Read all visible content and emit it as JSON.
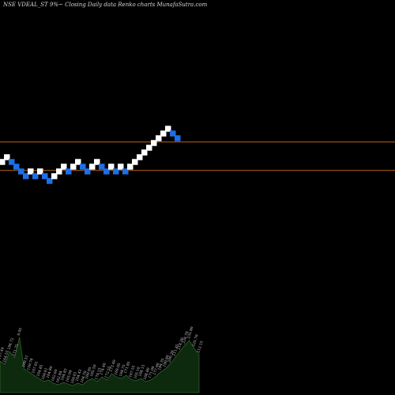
{
  "header": {
    "title": "NSE VDEAL_ST 9%~   Closing Daily data  Renko  charts MunafaSutra.com"
  },
  "colors": {
    "background": "#000000",
    "up_brick": "#ffffff",
    "down_brick": "#1e6fe6",
    "level_line": "#b5651d",
    "volume_fill": "#0e2a0e",
    "volume_stroke": "#3a7a3a",
    "volume_label": "#cfcfcf"
  },
  "chart_data": [
    {
      "type": "renko",
      "title": "NSE VDEAL_ST 9%~   Closing Daily data  Renko  charts MunafaSutra.com",
      "bricks": [
        {
          "dir": "up",
          "level": 0
        },
        {
          "dir": "up",
          "level": 1
        },
        {
          "dir": "down",
          "level": 0
        },
        {
          "dir": "down",
          "level": -1
        },
        {
          "dir": "down",
          "level": -2
        },
        {
          "dir": "down",
          "level": -3
        },
        {
          "dir": "up",
          "level": -2
        },
        {
          "dir": "down",
          "level": -3
        },
        {
          "dir": "up",
          "level": -2
        },
        {
          "dir": "down",
          "level": -3
        },
        {
          "dir": "down",
          "level": -4
        },
        {
          "dir": "up",
          "level": -3
        },
        {
          "dir": "up",
          "level": -2
        },
        {
          "dir": "up",
          "level": -1
        },
        {
          "dir": "down",
          "level": -2
        },
        {
          "dir": "up",
          "level": -1
        },
        {
          "dir": "up",
          "level": 0
        },
        {
          "dir": "down",
          "level": -1
        },
        {
          "dir": "down",
          "level": -2
        },
        {
          "dir": "up",
          "level": -1
        },
        {
          "dir": "up",
          "level": 0
        },
        {
          "dir": "down",
          "level": -1
        },
        {
          "dir": "down",
          "level": -2
        },
        {
          "dir": "up",
          "level": -1
        },
        {
          "dir": "down",
          "level": -2
        },
        {
          "dir": "up",
          "level": -1
        },
        {
          "dir": "down",
          "level": -2
        },
        {
          "dir": "up",
          "level": -1
        },
        {
          "dir": "up",
          "level": 0
        },
        {
          "dir": "up",
          "level": 1
        },
        {
          "dir": "up",
          "level": 2
        },
        {
          "dir": "up",
          "level": 3
        },
        {
          "dir": "up",
          "level": 4
        },
        {
          "dir": "up",
          "level": 5
        },
        {
          "dir": "up",
          "level": 6
        },
        {
          "dir": "up",
          "level": 7
        },
        {
          "dir": "down",
          "level": 6
        },
        {
          "dir": "down",
          "level": 5
        }
      ],
      "reference_levels": [
        4.2,
        -1.8
      ],
      "volume": [
        {
          "value": 40,
          "label": "157.44"
        },
        {
          "value": 36,
          "label": "164.55"
        },
        {
          "value": 52,
          "label": "186.72"
        },
        {
          "value": 44,
          "label": "171.75"
        },
        {
          "value": 70,
          "label": "0.95"
        },
        {
          "value": 30,
          "label": "169.51"
        },
        {
          "value": 26,
          "label": "159.78"
        },
        {
          "value": 22,
          "label": "167.65"
        },
        {
          "value": 18,
          "label": "164.85"
        },
        {
          "value": 14,
          "label": "160.61"
        },
        {
          "value": 16,
          "label": "164.80"
        },
        {
          "value": 12,
          "label": "162.60"
        },
        {
          "value": 10,
          "label": "162.84"
        },
        {
          "value": 13,
          "label": "164.83"
        },
        {
          "value": 11,
          "label": "165.94"
        },
        {
          "value": 9,
          "label": "160.01"
        },
        {
          "value": 12,
          "label": "164.43"
        },
        {
          "value": 10,
          "label": "164.70"
        },
        {
          "value": 15,
          "label": "169.95"
        },
        {
          "value": 18,
          "label": "165.50"
        },
        {
          "value": 14,
          "label": "170.15"
        },
        {
          "value": 20,
          "label": "174.40"
        },
        {
          "value": 16,
          "label": "172.55"
        },
        {
          "value": 24,
          "label": "173.40"
        },
        {
          "value": 20,
          "label": "169.05"
        },
        {
          "value": 18,
          "label": "168.75"
        },
        {
          "value": 22,
          "label": "171.85"
        },
        {
          "value": 17,
          "label": "167.55"
        },
        {
          "value": 15,
          "label": "165.10"
        },
        {
          "value": 18,
          "label": "168.15"
        },
        {
          "value": 14,
          "label": "168.80"
        },
        {
          "value": 16,
          "label": "171.00"
        },
        {
          "value": 20,
          "label": "177.90"
        },
        {
          "value": 26,
          "label": "184.35"
        },
        {
          "value": 30,
          "label": "190.80"
        },
        {
          "value": 36,
          "label": "200.30"
        },
        {
          "value": 44,
          "label": "211.45"
        },
        {
          "value": 52,
          "label": "218.30"
        },
        {
          "value": 60,
          "label": "228.70"
        },
        {
          "value": 66,
          "label": "235.80"
        },
        {
          "value": 56,
          "label": "225.70"
        },
        {
          "value": 48,
          "label": "212.15"
        }
      ]
    }
  ]
}
